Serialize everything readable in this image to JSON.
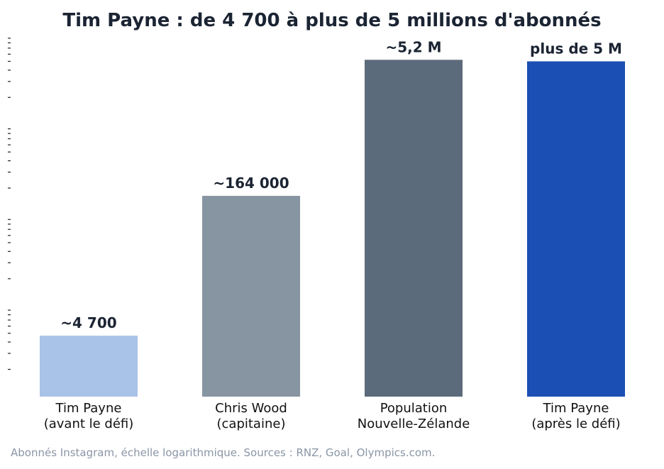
{
  "chart_data": {
    "type": "bar",
    "title": "Tim Payne : de 4 700 à plus de 5 millions d'abonnés",
    "yscale": "log",
    "ylim": [
      1000,
      10000000
    ],
    "categories": [
      [
        "Tim Payne",
        "(avant le défi)"
      ],
      [
        "Chris Wood",
        "(capitaine)"
      ],
      [
        "Population",
        "Nouvelle-Zélande"
      ],
      [
        "Tim Payne",
        "(après le défi)"
      ]
    ],
    "values": [
      4700,
      164000,
      5200000,
      5000000
    ],
    "data_labels": [
      "~4 700",
      "~164 000",
      "~5,2 M",
      "plus de 5 M"
    ],
    "colors": [
      "#a9c2e8",
      "#8795a2",
      "#5c6b7b",
      "#1b4fb3"
    ],
    "caption": "Abonnés Instagram, échelle logarithmique. Sources : RNZ, Goal, Olympics.com."
  }
}
